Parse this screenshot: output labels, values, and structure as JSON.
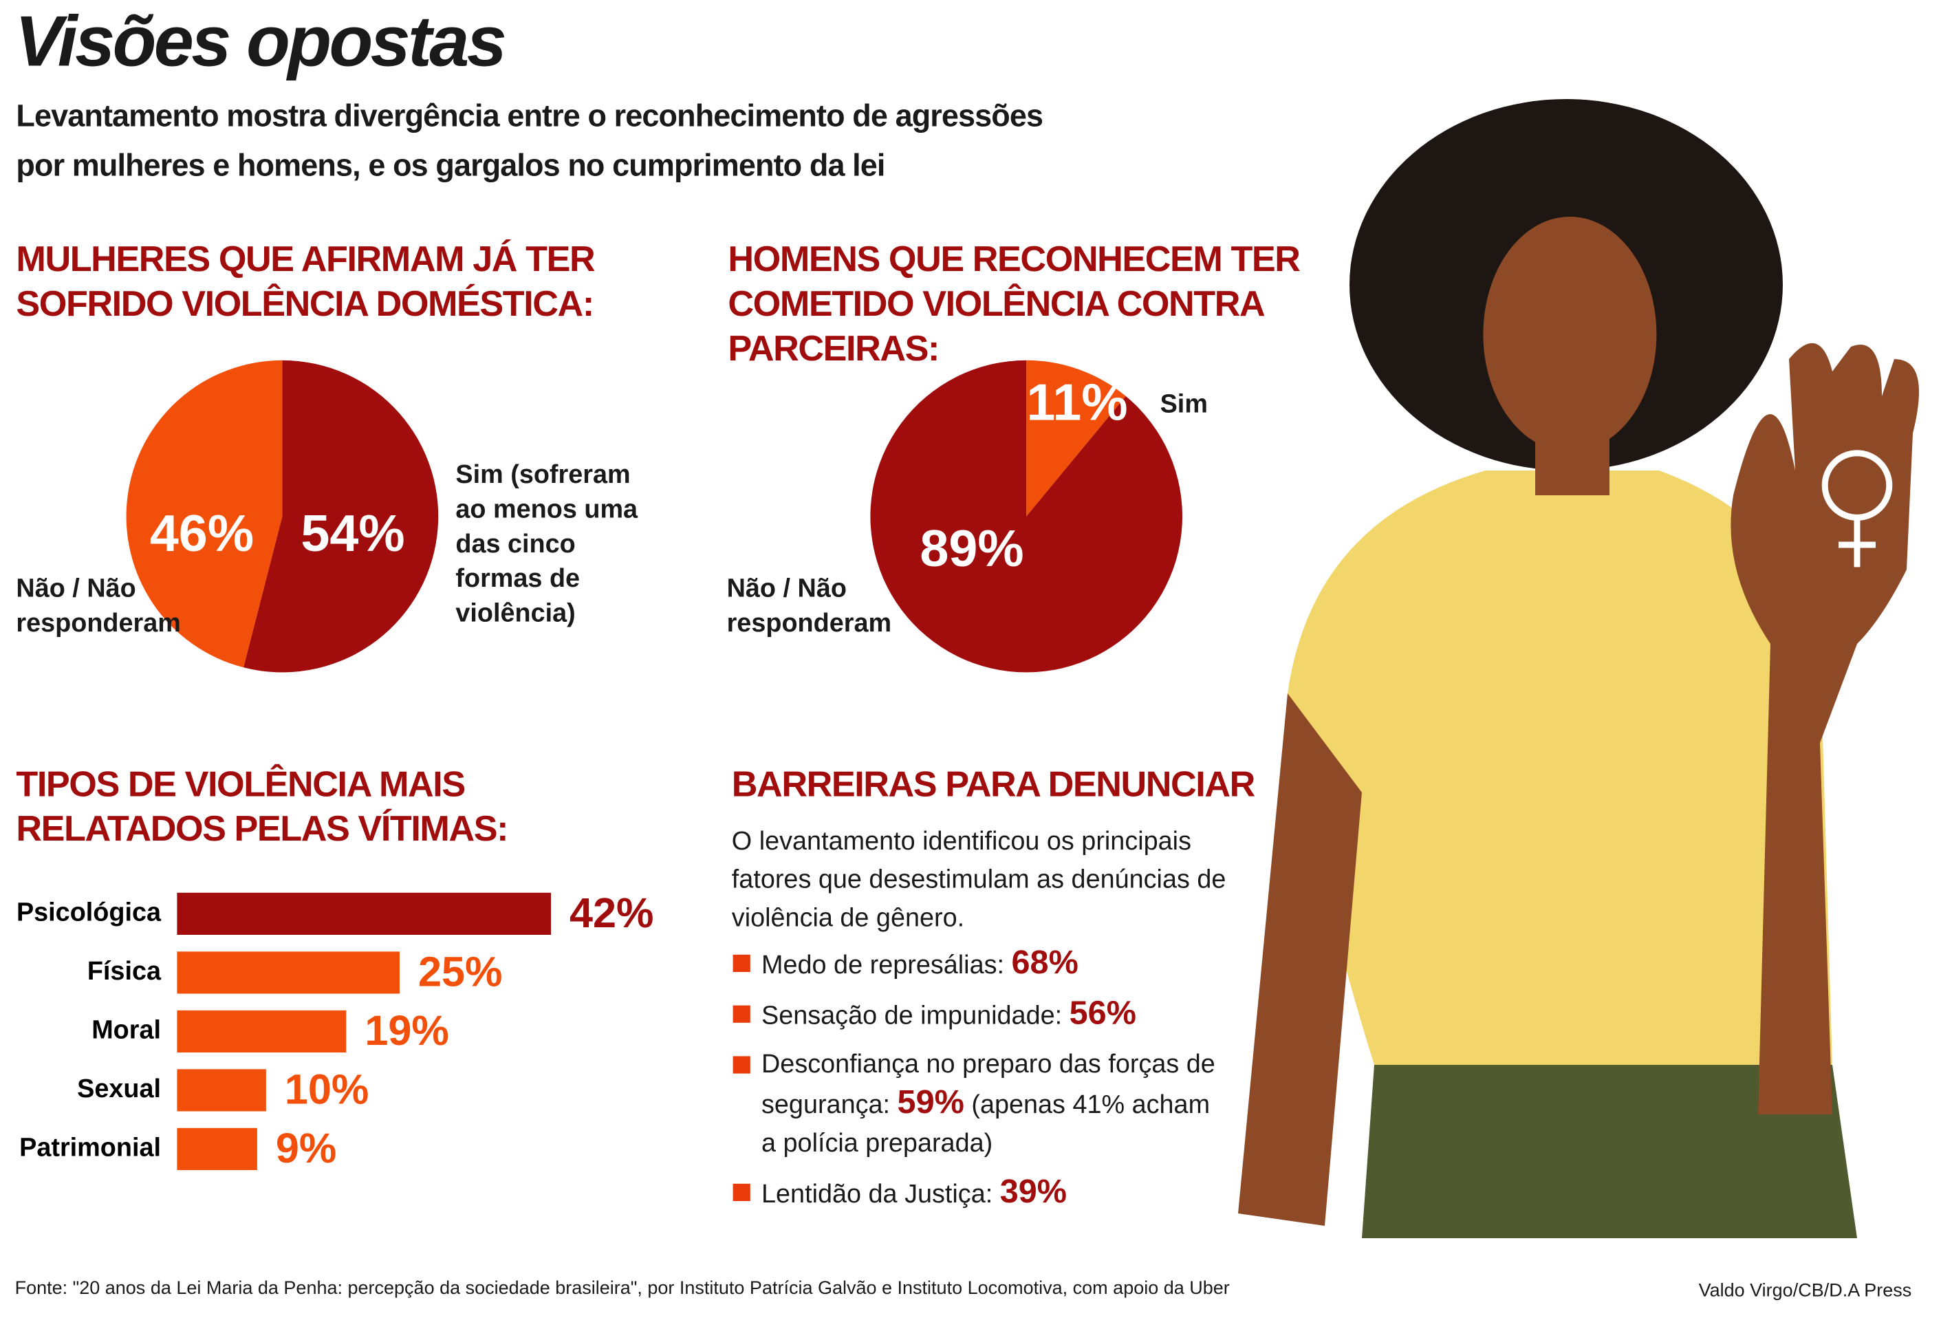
{
  "title": "Visões opostas",
  "subtitle": "Levantamento mostra divergência entre o reconhecimento de agressões por mulheres e homens, e os gargalos no cumprimento da lei",
  "chart_data": [
    {
      "type": "pie",
      "title": "MULHERES QUE AFIRMAM JÁ TER SOFRIDO VIOLÊNCIA DOMÉSTICA:",
      "categories": [
        "Sim (sofreram ao menos uma das cinco formas de violência)",
        "Não / Não responderam"
      ],
      "values": [
        54,
        46
      ],
      "value_labels": [
        "54%",
        "46%"
      ],
      "colors": [
        "#a10d0d",
        "#f2500a"
      ]
    },
    {
      "type": "pie",
      "title": "HOMENS QUE RECONHECEM TER COMETIDO VIOLÊNCIA CONTRA PARCEIRAS:",
      "categories": [
        "Sim",
        "Não / Não responderam"
      ],
      "values": [
        11,
        89
      ],
      "value_labels": [
        "11%",
        "89%"
      ],
      "colors": [
        "#f2500a",
        "#a10d0d"
      ]
    },
    {
      "type": "bar",
      "title": "TIPOS DE VIOLÊNCIA MAIS RELATADOS PELAS VÍTIMAS:",
      "categories": [
        "Psicológica",
        "Física",
        "Moral",
        "Sexual",
        "Patrimonial"
      ],
      "values": [
        42,
        25,
        19,
        10,
        9
      ],
      "value_labels": [
        "42%",
        "25%",
        "19%",
        "10%",
        "9%"
      ],
      "colors": [
        "#a10d0d",
        "#f2500a",
        "#f2500a",
        "#f2500a",
        "#f2500a"
      ]
    }
  ],
  "barriers": {
    "title": "BARREIRAS PARA DENUNCIAR",
    "intro": "O levantamento identificou os principais fatores que desestimulam as denúncias de violência de gênero.",
    "items": [
      {
        "text": "Medo de represálias:",
        "value": "68%"
      },
      {
        "text": "Sensação de impunidade:",
        "value": "56%"
      },
      {
        "text": "Desconfiança no preparo das forças de segurança:",
        "value": "59%",
        "note": "(apenas 41% acham a polícia preparada)"
      },
      {
        "text": "Lentidão da Justiça:",
        "value": "39%"
      }
    ]
  },
  "source": "Fonte: \"20 anos da Lei Maria da Penha: percepção da sociedade brasileira\", por Instituto Patrícia Galvão e Instituto Locomotiva, com apoio da Uber",
  "credit": "Valdo Virgo/CB/D.A Press"
}
